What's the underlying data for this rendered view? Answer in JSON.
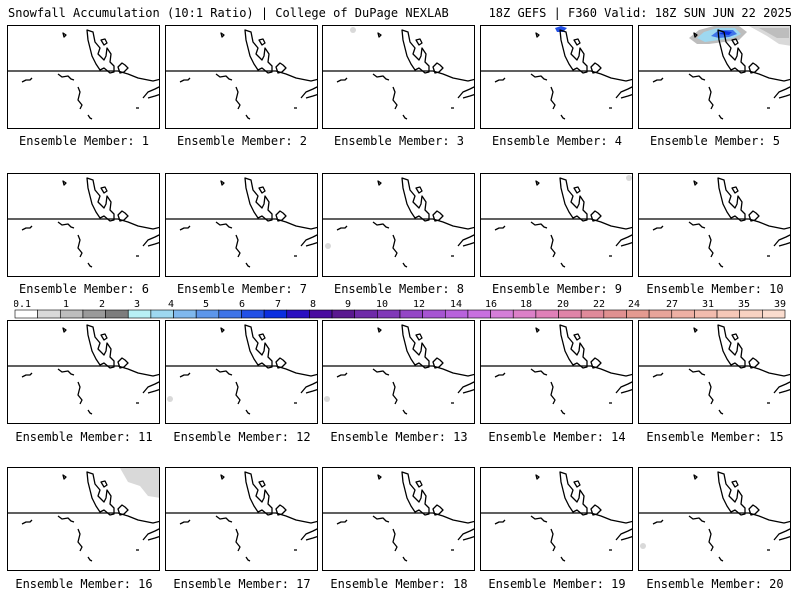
{
  "header": {
    "left": "Snowfall Accumulation (10:1 Ratio) | College of DuPage NEXLAB",
    "right": "18Z GEFS | F360 Valid: 18Z SUN JUN 22 2025"
  },
  "members": [
    {
      "label": "Ensemble Member: 1",
      "snow": []
    },
    {
      "label": "Ensemble Member: 2",
      "snow": []
    },
    {
      "label": "Ensemble Member: 3",
      "snow": [
        "trace-nw"
      ]
    },
    {
      "label": "Ensemble Member: 4",
      "snow": [
        "blue-north"
      ]
    },
    {
      "label": "Ensemble Member: 5",
      "snow": [
        "blue-heavy-north"
      ]
    },
    {
      "label": "Ensemble Member: 6",
      "snow": []
    },
    {
      "label": "Ensemble Member: 7",
      "snow": []
    },
    {
      "label": "Ensemble Member: 8",
      "snow": [
        "trace-west"
      ]
    },
    {
      "label": "Ensemble Member: 9",
      "snow": [
        "trace-ne"
      ]
    },
    {
      "label": "Ensemble Member: 10",
      "snow": []
    },
    {
      "label": "Ensemble Member: 11",
      "snow": []
    },
    {
      "label": "Ensemble Member: 12",
      "snow": [
        "trace-sw"
      ]
    },
    {
      "label": "Ensemble Member: 13",
      "snow": [
        "trace-sw"
      ]
    },
    {
      "label": "Ensemble Member: 14",
      "snow": []
    },
    {
      "label": "Ensemble Member: 15",
      "snow": []
    },
    {
      "label": "Ensemble Member: 16",
      "snow": [
        "grey-ne"
      ]
    },
    {
      "label": "Ensemble Member: 17",
      "snow": []
    },
    {
      "label": "Ensemble Member: 18",
      "snow": []
    },
    {
      "label": "Ensemble Member: 19",
      "snow": []
    },
    {
      "label": "Ensemble Member: 20",
      "snow": [
        "trace-sw"
      ]
    }
  ],
  "colorbar": {
    "labels": [
      "0.1",
      "1",
      "2",
      "3",
      "4",
      "5",
      "6",
      "7",
      "8",
      "9",
      "10",
      "12",
      "14",
      "16",
      "18",
      "20",
      "22",
      "24",
      "27",
      "31",
      "35",
      "39"
    ],
    "colors": [
      "#ffffff",
      "#d9d9d9",
      "#bdbdbd",
      "#9a9a9a",
      "#7d7d7d",
      "#b8f0f5",
      "#9ed8f0",
      "#7fb8ee",
      "#5d96ea",
      "#3f74e8",
      "#2250e6",
      "#0a2ee0",
      "#2a10c0",
      "#4a0ca0",
      "#5a1890",
      "#6e2aa8",
      "#8038b8",
      "#9446c6",
      "#a654d2",
      "#b862dc",
      "#c870e0",
      "#d47ed8",
      "#dc80c8",
      "#e080b8",
      "#e084a8",
      "#e08a9a",
      "#e09090",
      "#e49a90",
      "#e8a49a",
      "#eeb0a4",
      "#f2bcae",
      "#f6c8b8",
      "#f8d2c2",
      "#fadcce"
    ]
  }
}
